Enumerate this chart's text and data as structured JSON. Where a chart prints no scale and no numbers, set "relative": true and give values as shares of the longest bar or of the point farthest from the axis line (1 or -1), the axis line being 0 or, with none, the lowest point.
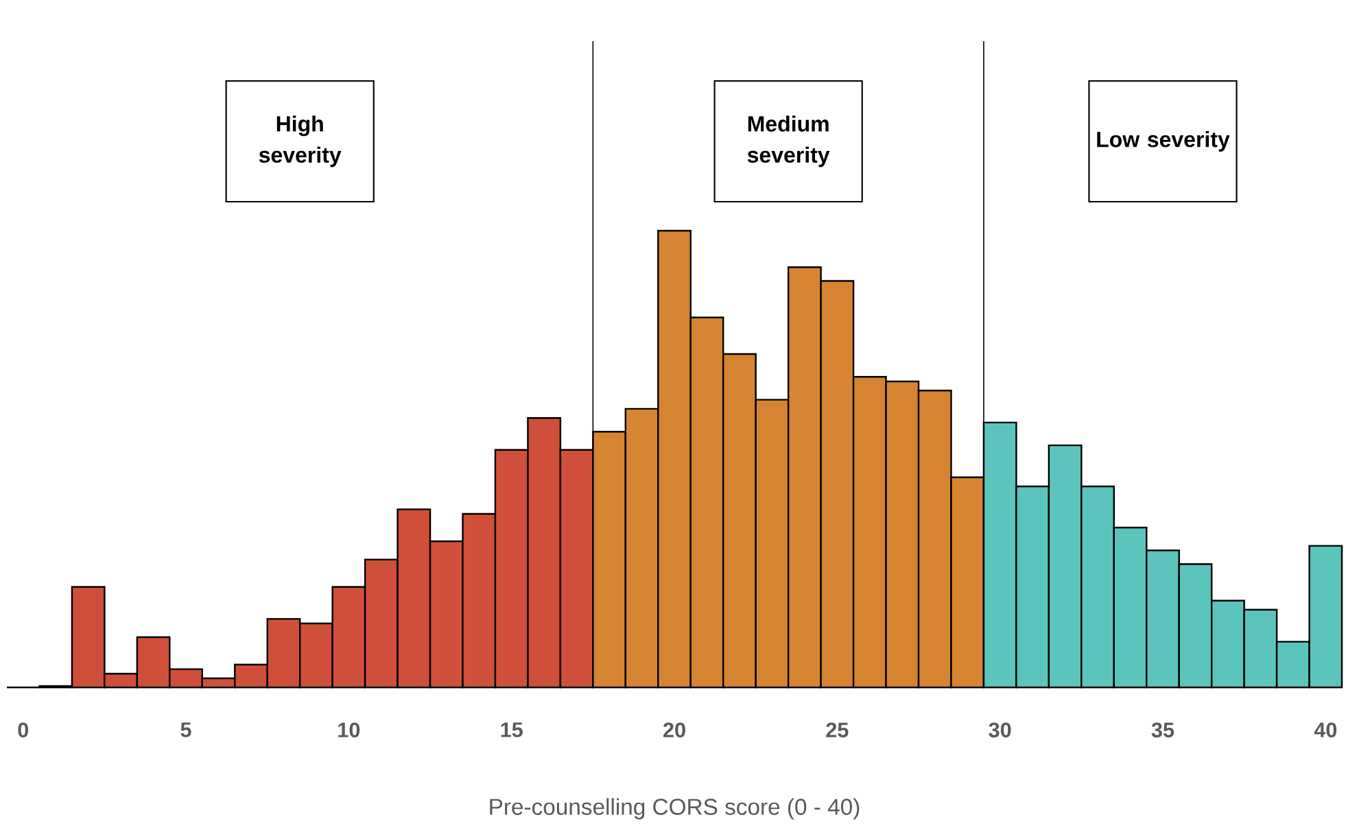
{
  "chart_data": {
    "type": "bar",
    "relative": true,
    "xlabel": "Pre-counselling CORS score (0 - 40)",
    "categories": [
      "0",
      null,
      null,
      null,
      null,
      "5",
      null,
      null,
      null,
      null,
      "10",
      null,
      null,
      null,
      null,
      "15",
      null,
      null,
      null,
      null,
      "20",
      null,
      null,
      null,
      null,
      "25",
      null,
      null,
      null,
      null,
      "30",
      null,
      null,
      null,
      null,
      "35",
      null,
      null,
      null,
      null,
      "40"
    ],
    "values": [
      0,
      0.003,
      0.22,
      0.03,
      0.11,
      0.04,
      0.02,
      0.05,
      0.15,
      0.14,
      0.22,
      0.28,
      0.39,
      0.32,
      0.38,
      0.52,
      0.59,
      0.52,
      0.56,
      0.61,
      1,
      0.81,
      0.73,
      0.63,
      0.92,
      0.89,
      0.68,
      0.67,
      0.65,
      0.46,
      0.58,
      0.44,
      0.53,
      0.44,
      0.35,
      0.3,
      0.27,
      0.19,
      0.17,
      0.1,
      0.31
    ],
    "colors": [
      "#cf4f3b",
      "#cf4f3b",
      "#cf4f3b",
      "#cf4f3b",
      "#cf4f3b",
      "#cf4f3b",
      "#cf4f3b",
      "#cf4f3b",
      "#cf4f3b",
      "#cf4f3b",
      "#cf4f3b",
      "#cf4f3b",
      "#cf4f3b",
      "#cf4f3b",
      "#cf4f3b",
      "#cf4f3b",
      "#cf4f3b",
      "#cf4f3b",
      "#d68431",
      "#d68431",
      "#d68431",
      "#d68431",
      "#d68431",
      "#d68431",
      "#d68431",
      "#d68431",
      "#d68431",
      "#d68431",
      "#d68431",
      "#d68431",
      "#5bc5bd",
      "#5bc5bd",
      "#5bc5bd",
      "#5bc5bd",
      "#5bc5bd",
      "#5bc5bd",
      "#5bc5bd",
      "#5bc5bd",
      "#5bc5bd",
      "#5bc5bd",
      "#5bc5bd"
    ],
    "annotations": [
      "High severity",
      "Medium severity",
      "Low severity"
    ]
  }
}
